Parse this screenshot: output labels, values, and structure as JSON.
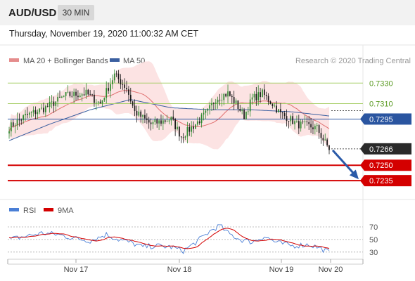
{
  "header": {
    "symbol": "AUD/USD",
    "timeframe": "30 MIN",
    "timestamp": "Thursday, November 19, 2020 11:00:32 AM CET"
  },
  "legend": {
    "ma20": "MA 20 + Bollinger Bands",
    "ma50": "MA 50",
    "credit": "Research © 2020 Trading Central"
  },
  "rsi_legend": {
    "rsi": "RSI",
    "ma": "9MA"
  },
  "colors": {
    "bullish_candle": "#2f8a2f",
    "bearish_candle": "#1a1a1a",
    "ma20": "#e07070",
    "bollinger_fill": "#fbd9d9",
    "ma50": "#3a5fa0",
    "resistance": "#a8cf6a",
    "support": "#d40000",
    "pivot": "#2a55a0",
    "rsi": "#4a7fd6",
    "rsi_ma": "#d40000",
    "arrow": "#2a5aa8"
  },
  "chart_data": {
    "type": "candlestick",
    "ylim": [
      0.7218,
      0.7348
    ],
    "x_ticks": [
      "Nov 17",
      "Nov 18",
      "Nov 19",
      "Nov 20"
    ],
    "levels": [
      {
        "value": 0.733,
        "label": "0.7330",
        "kind": "resistance"
      },
      {
        "value": 0.731,
        "label": "0.7310",
        "kind": "resistance"
      },
      {
        "value": 0.7295,
        "label": "0.7295",
        "kind": "pivot"
      },
      {
        "value": 0.7266,
        "label": "0.7266",
        "kind": "last"
      },
      {
        "value": 0.725,
        "label": "0.7250",
        "kind": "support"
      },
      {
        "value": 0.7235,
        "label": "0.7235",
        "kind": "support"
      }
    ],
    "price_anchors": [
      [
        0,
        0.7287
      ],
      [
        8,
        0.7298
      ],
      [
        18,
        0.7306
      ],
      [
        28,
        0.7318
      ],
      [
        38,
        0.732
      ],
      [
        45,
        0.731
      ],
      [
        52,
        0.7338
      ],
      [
        58,
        0.7325
      ],
      [
        62,
        0.7302
      ],
      [
        70,
        0.729
      ],
      [
        80,
        0.7295
      ],
      [
        85,
        0.7278
      ],
      [
        92,
        0.729
      ],
      [
        98,
        0.7302
      ],
      [
        102,
        0.7315
      ],
      [
        108,
        0.732
      ],
      [
        112,
        0.731
      ],
      [
        116,
        0.7298
      ],
      [
        120,
        0.7315
      ],
      [
        125,
        0.732
      ],
      [
        130,
        0.731
      ],
      [
        134,
        0.73
      ],
      [
        138,
        0.7296
      ],
      [
        142,
        0.729
      ],
      [
        148,
        0.7288
      ],
      [
        152,
        0.7286
      ],
      [
        155,
        0.7275
      ],
      [
        158,
        0.7266
      ]
    ],
    "ma50_anchors": [
      [
        0,
        0.7274
      ],
      [
        20,
        0.729
      ],
      [
        40,
        0.7304
      ],
      [
        60,
        0.7314
      ],
      [
        80,
        0.7306
      ],
      [
        100,
        0.7304
      ],
      [
        120,
        0.7304
      ],
      [
        140,
        0.7302
      ],
      [
        158,
        0.7298
      ]
    ],
    "forecast_arrow": {
      "from": 0.7266,
      "to": 0.7235
    },
    "rsi": {
      "levels": [
        70,
        50,
        30
      ],
      "ylim": [
        22,
        80
      ],
      "anchors": [
        [
          0,
          50
        ],
        [
          8,
          55
        ],
        [
          16,
          60
        ],
        [
          24,
          58
        ],
        [
          32,
          52
        ],
        [
          40,
          48
        ],
        [
          48,
          58
        ],
        [
          54,
          50
        ],
        [
          60,
          45
        ],
        [
          66,
          38
        ],
        [
          72,
          40
        ],
        [
          80,
          38
        ],
        [
          86,
          32
        ],
        [
          92,
          45
        ],
        [
          100,
          65
        ],
        [
          104,
          72
        ],
        [
          108,
          60
        ],
        [
          114,
          50
        ],
        [
          120,
          46
        ],
        [
          126,
          55
        ],
        [
          132,
          45
        ],
        [
          140,
          40
        ],
        [
          148,
          42
        ],
        [
          152,
          38
        ],
        [
          158,
          30
        ]
      ]
    }
  }
}
